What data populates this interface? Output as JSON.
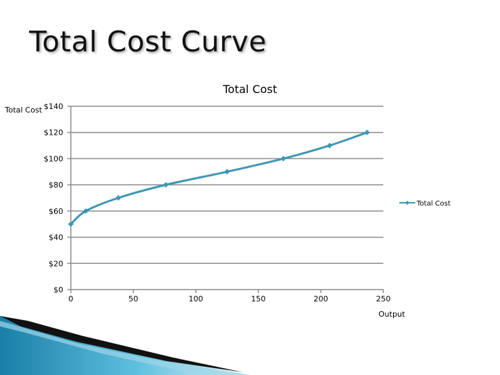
{
  "slide": {
    "title": "Total Cost Curve"
  },
  "chart_data": {
    "type": "line",
    "title": "Total Cost",
    "xlabel": "Output",
    "ylabel": "Total Cost",
    "xlim": [
      0,
      250
    ],
    "ylim": [
      0,
      140
    ],
    "x_ticks": [
      {
        "value": 0,
        "label": "0"
      },
      {
        "value": 50,
        "label": "50"
      },
      {
        "value": 100,
        "label": "100"
      },
      {
        "value": 150,
        "label": "150"
      },
      {
        "value": 200,
        "label": "200"
      },
      {
        "value": 250,
        "label": "250"
      }
    ],
    "y_ticks": [
      {
        "value": 0,
        "label": "$0"
      },
      {
        "value": 20,
        "label": "$20"
      },
      {
        "value": 40,
        "label": "$40"
      },
      {
        "value": 60,
        "label": "$60"
      },
      {
        "value": 80,
        "label": "$80"
      },
      {
        "value": 100,
        "label": "$100"
      },
      {
        "value": 120,
        "label": "$120"
      },
      {
        "value": 140,
        "label": "$140"
      }
    ],
    "grid": true,
    "legend": "right",
    "series": [
      {
        "name": "Total Cost",
        "color": "#3d97b3",
        "x": [
          0,
          12,
          38,
          76,
          125,
          170,
          207,
          237
        ],
        "y": [
          50,
          60,
          70,
          80,
          90,
          100,
          110,
          120
        ]
      }
    ]
  }
}
